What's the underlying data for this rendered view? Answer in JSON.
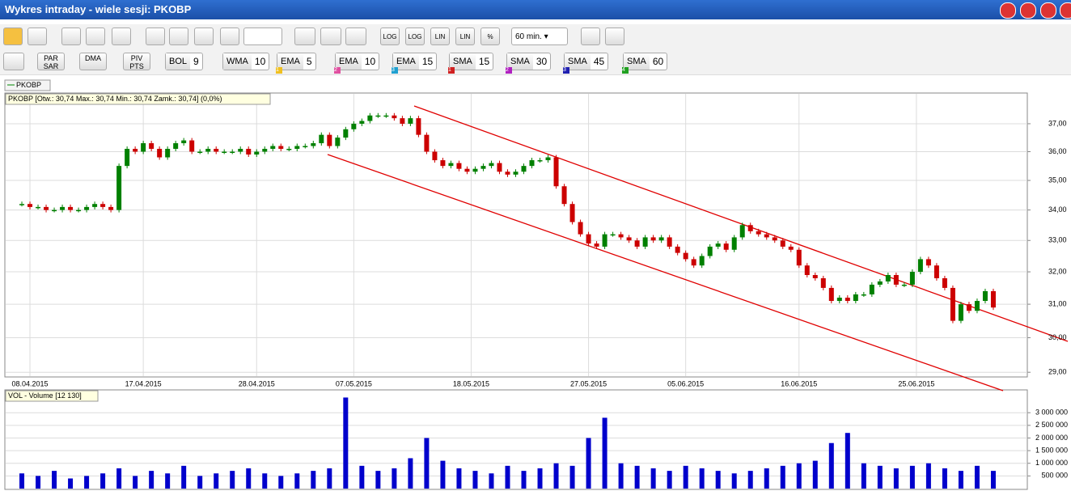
{
  "window": {
    "title": "Wykres intraday -  wiele sesji: PKOBP"
  },
  "toolbar": {
    "interval": "60 min.",
    "buttons": [
      "LOG",
      "LOG",
      "LIN",
      "LIN",
      "%"
    ],
    "indicator_buttons": [
      "PAR SAR",
      "DMA",
      "PIV PTS"
    ],
    "indicators": [
      {
        "label": "BOL",
        "value": 9
      },
      {
        "label": "WMA",
        "value": 10
      },
      {
        "label": "EMA",
        "value": 5,
        "tag": "1",
        "color": "#f0c020"
      },
      {
        "label": "EMA",
        "value": 10,
        "tag": "2",
        "color": "#e050a0"
      },
      {
        "label": "EMA",
        "value": 15,
        "tag": "3",
        "color": "#20a0d0"
      },
      {
        "label": "SMA",
        "value": 15,
        "tag": "1",
        "color": "#d02020"
      },
      {
        "label": "SMA",
        "value": 30,
        "tag": "2",
        "color": "#b020c0"
      },
      {
        "label": "SMA",
        "value": 45,
        "tag": "3",
        "color": "#2020b0"
      },
      {
        "label": "SMA",
        "value": 60,
        "tag": "4",
        "color": "#20a020"
      }
    ]
  },
  "legend": "PKOBP",
  "price_chart": {
    "type": "candlestick",
    "info": "PKOBP [Otw.: 30,74  Max.: 30,74  Min.: 30,74  Zamk.: 30,74] (0,0%)",
    "log_scale": true,
    "grid": true,
    "up_color": "#008000",
    "down_color": "#cc0000",
    "ylim": [
      28.89,
      38.1
    ],
    "yticks": [
      {
        "value": 29,
        "label": "29,00"
      },
      {
        "value": 30,
        "label": "30,00"
      },
      {
        "value": 31,
        "label": "31,00"
      },
      {
        "value": 32,
        "label": "32,00"
      },
      {
        "value": 33,
        "label": "33,00"
      },
      {
        "value": 34,
        "label": "34,00"
      },
      {
        "value": 35,
        "label": "35,00"
      },
      {
        "value": 36,
        "label": "36,00"
      },
      {
        "value": 37,
        "label": "37,00"
      }
    ],
    "xlim": [
      0,
      126.2
    ],
    "xticks": [
      {
        "value": 3,
        "label": "08.04.2015"
      },
      {
        "value": 17,
        "label": "17.04.2015"
      },
      {
        "value": 31,
        "label": "28.04.2015"
      },
      {
        "value": 43,
        "label": "07.05.2015"
      },
      {
        "value": 57.5,
        "label": "18.05.2015"
      },
      {
        "value": 72,
        "label": "27.05.2015"
      },
      {
        "value": 84,
        "label": "05.06.2015"
      },
      {
        "value": 98,
        "label": "16.06.2015"
      },
      {
        "value": 112.5,
        "label": "25.06.2015"
      }
    ],
    "x": [
      2,
      3,
      4,
      5,
      6,
      7,
      8,
      9,
      10,
      11,
      12,
      13,
      14,
      15,
      16,
      17,
      18,
      19,
      20,
      21,
      22,
      23,
      24,
      25,
      26,
      27,
      28,
      29,
      30,
      31,
      32,
      33,
      34,
      35,
      36,
      37,
      38,
      39,
      40,
      41,
      42,
      43,
      44,
      45,
      46,
      47,
      48,
      49,
      50,
      51,
      52,
      53,
      54,
      55,
      56,
      57,
      58,
      59,
      60,
      61,
      62,
      63,
      64,
      65,
      66,
      67,
      68,
      69,
      70,
      71,
      72,
      73,
      74,
      75,
      76,
      77,
      78,
      79,
      80,
      81,
      82,
      83,
      84,
      85,
      86,
      87,
      88,
      89,
      90,
      91,
      92,
      93,
      94,
      95,
      96,
      97,
      98,
      99,
      100,
      101,
      102,
      103,
      104,
      105,
      106,
      107,
      108,
      109,
      110,
      111,
      112,
      113,
      114,
      115,
      116,
      117,
      118,
      119,
      120,
      121,
      122
    ],
    "values": [
      34.2,
      34.1,
      34.1,
      34.0,
      34.0,
      34.1,
      34.0,
      34.0,
      34.1,
      34.2,
      34.1,
      34.0,
      35.5,
      36.1,
      36.0,
      36.3,
      36.1,
      35.8,
      36.1,
      36.3,
      36.4,
      36.0,
      36.0,
      36.1,
      36.0,
      36.0,
      36.0,
      36.1,
      35.9,
      36.0,
      36.1,
      36.2,
      36.1,
      36.1,
      36.2,
      36.2,
      36.3,
      36.6,
      36.2,
      36.5,
      36.8,
      37.0,
      37.1,
      37.3,
      37.3,
      37.3,
      37.2,
      37.0,
      37.2,
      36.6,
      36.0,
      35.7,
      35.5,
      35.6,
      35.4,
      35.3,
      35.4,
      35.5,
      35.6,
      35.3,
      35.2,
      35.3,
      35.5,
      35.7,
      35.7,
      35.8,
      34.8,
      34.2,
      33.6,
      33.2,
      32.9,
      32.8,
      33.2,
      33.2,
      33.1,
      33.0,
      32.8,
      33.1,
      33.0,
      33.1,
      32.8,
      32.6,
      32.4,
      32.2,
      32.5,
      32.8,
      32.9,
      32.7,
      33.1,
      33.5,
      33.3,
      33.2,
      33.1,
      33.0,
      32.8,
      32.7,
      32.2,
      31.9,
      31.8,
      31.5,
      31.1,
      31.2,
      31.1,
      31.3,
      31.3,
      31.6,
      31.7,
      31.9,
      31.6,
      31.6,
      32.0,
      32.4,
      32.2,
      31.8,
      31.5,
      30.5,
      31.0,
      30.8,
      31.1,
      31.4,
      30.9
    ]
  },
  "volume_chart": {
    "type": "bar",
    "title": "VOL - Volume [12 130]",
    "color": "#0000cc",
    "grid": true,
    "ylim": [
      0,
      3870000
    ],
    "yticks": [
      {
        "value": 500000,
        "label": "500 000"
      },
      {
        "value": 1000000,
        "label": "1 000 000"
      },
      {
        "value": 1500000,
        "label": "1 500 000"
      },
      {
        "value": 2000000,
        "label": "2 000 000"
      },
      {
        "value": 2500000,
        "label": "2 500 000"
      },
      {
        "value": 3000000,
        "label": "3 000 000"
      }
    ],
    "xlim": [
      0,
      126.2
    ],
    "x": [
      2,
      4,
      6,
      8,
      10,
      12,
      14,
      16,
      18,
      20,
      22,
      24,
      26,
      28,
      30,
      32,
      34,
      36,
      38,
      40,
      42,
      44,
      46,
      48,
      50,
      52,
      54,
      56,
      58,
      60,
      62,
      64,
      66,
      68,
      70,
      72,
      74,
      76,
      78,
      80,
      82,
      84,
      86,
      88,
      90,
      92,
      94,
      96,
      98,
      100,
      102,
      104,
      106,
      108,
      110,
      112,
      114,
      116,
      118,
      120,
      122
    ],
    "values": [
      600000,
      500000,
      700000,
      400000,
      500000,
      600000,
      800000,
      500000,
      700000,
      600000,
      900000,
      500000,
      600000,
      700000,
      800000,
      600000,
      500000,
      600000,
      700000,
      800000,
      3600000,
      900000,
      700000,
      800000,
      1200000,
      2000000,
      1100000,
      800000,
      700000,
      600000,
      900000,
      700000,
      800000,
      1000000,
      900000,
      2000000,
      2800000,
      1000000,
      900000,
      800000,
      700000,
      900000,
      800000,
      700000,
      600000,
      700000,
      800000,
      900000,
      1000000,
      1100000,
      1800000,
      2200000,
      1000000,
      900000,
      800000,
      900000,
      1000000,
      800000,
      700000,
      900000,
      700000
    ]
  }
}
